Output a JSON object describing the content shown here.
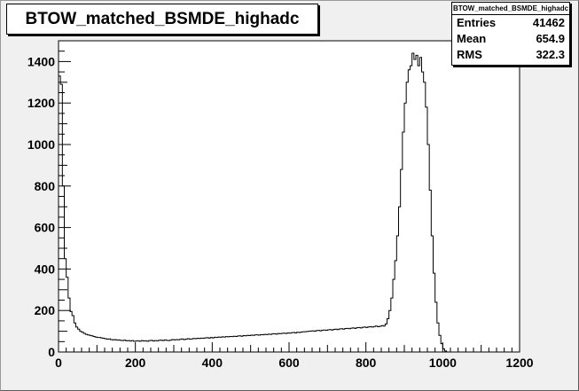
{
  "chart_data": {
    "type": "histogram",
    "title": "BTOW_matched_BSMDE_highadc",
    "xlabel": "",
    "ylabel": "",
    "xlim": [
      0,
      1200
    ],
    "ylim": [
      0,
      1500
    ],
    "x_ticks": [
      0,
      200,
      400,
      600,
      800,
      1000,
      1200
    ],
    "y_ticks": [
      0,
      200,
      400,
      600,
      800,
      1000,
      1200,
      1400
    ],
    "grid": false,
    "bin_width": 5,
    "bin_start": 0,
    "values": [
      1330,
      1290,
      800,
      450,
      360,
      260,
      195,
      175,
      140,
      120,
      110,
      100,
      95,
      90,
      85,
      82,
      80,
      78,
      75,
      72,
      70,
      70,
      68,
      66,
      64,
      62,
      63,
      60,
      58,
      60,
      57,
      58,
      56,
      55,
      57,
      54,
      55,
      53,
      55,
      52,
      53,
      54,
      52,
      55,
      53,
      54,
      52,
      55,
      56,
      53,
      55,
      54,
      56,
      57,
      55,
      58,
      56,
      55,
      57,
      60,
      58,
      60,
      59,
      61,
      63,
      60,
      62,
      64,
      62,
      63,
      65,
      64,
      66,
      65,
      67,
      66,
      68,
      69,
      67,
      70,
      68,
      71,
      70,
      72,
      71,
      73,
      72,
      74,
      73,
      75,
      74,
      76,
      75,
      77,
      78,
      76,
      79,
      78,
      80,
      79,
      81,
      80,
      82,
      83,
      81,
      84,
      83,
      85,
      84,
      86,
      85,
      87,
      88,
      86,
      89,
      88,
      90,
      91,
      89,
      92,
      91,
      93,
      94,
      92,
      95,
      94,
      96,
      97,
      98,
      99,
      100,
      101,
      102,
      100,
      103,
      104,
      102,
      105,
      106,
      104,
      107,
      108,
      106,
      109,
      110,
      108,
      111,
      112,
      110,
      113,
      114,
      112,
      115,
      116,
      114,
      117,
      118,
      116,
      119,
      120,
      118,
      121,
      122,
      120,
      123,
      125,
      122,
      124,
      127,
      125,
      135,
      160,
      200,
      260,
      350,
      440,
      560,
      700,
      880,
      1060,
      1200,
      1300,
      1360,
      1380,
      1440,
      1410,
      1430,
      1380,
      1420,
      1350,
      1300,
      1180,
      1000,
      780,
      560,
      380,
      240,
      140,
      80,
      40,
      15,
      5,
      0
    ],
    "stats": {
      "box_title": "BTOW_matched_BSMDE_highadc",
      "entries_label": "Entries",
      "entries": "41462",
      "mean_label": "Mean",
      "mean": "654.9",
      "rms_label": "RMS",
      "rms": "322.3"
    },
    "colors": {
      "line": "#000000",
      "frame": "#f0f0f0",
      "plot_bg": "#ffffff"
    }
  }
}
